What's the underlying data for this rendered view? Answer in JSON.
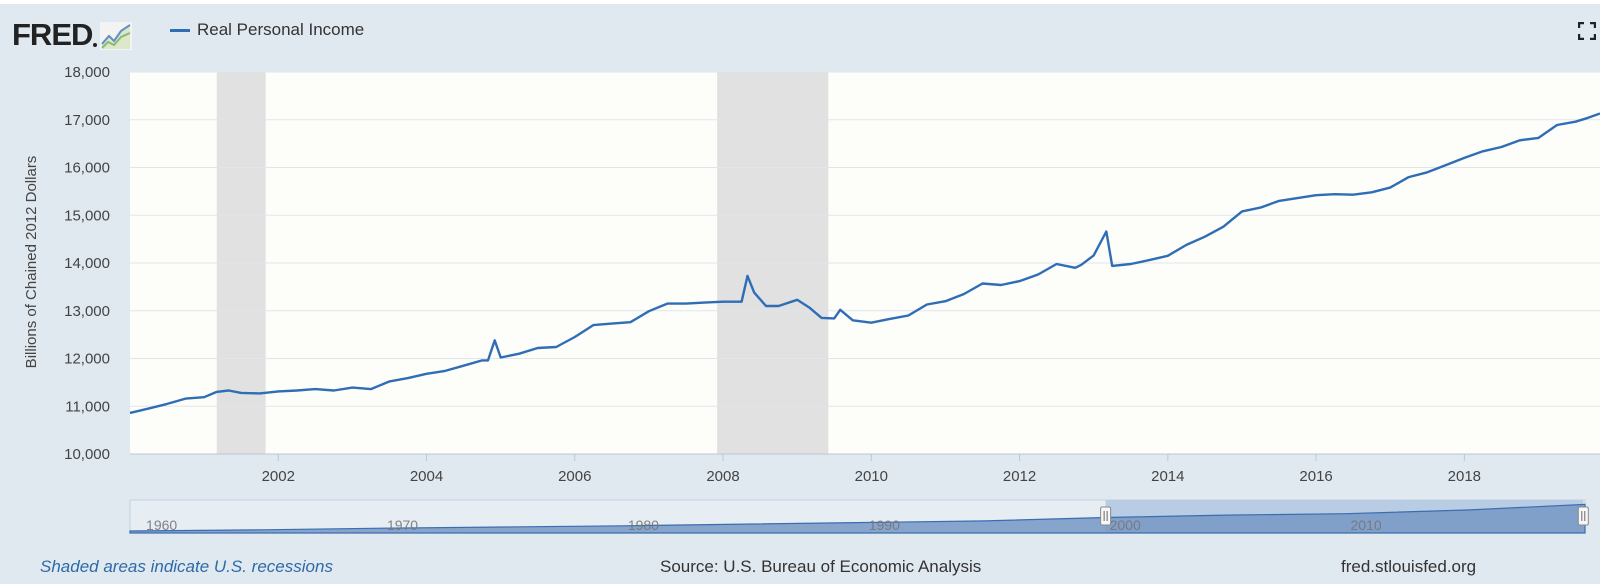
{
  "header": {
    "logo_text": "FRED",
    "legend_label": "Real Personal Income",
    "series_color": "#2f6db5"
  },
  "chart_data": {
    "type": "line",
    "title": "",
    "xlabel": "",
    "ylabel": "Billions of Chained 2012 Dollars",
    "xlim": [
      2000.0,
      2019.83
    ],
    "ylim": [
      10000,
      18000
    ],
    "y_ticks": [
      "10,000",
      "11,000",
      "12,000",
      "13,000",
      "14,000",
      "15,000",
      "16,000",
      "17,000",
      "18,000"
    ],
    "x_ticks": [
      "2002",
      "2004",
      "2006",
      "2008",
      "2010",
      "2012",
      "2014",
      "2016",
      "2018"
    ],
    "grid": true,
    "legend_position": "top-left",
    "recessions": [
      {
        "start": 2001.17,
        "end": 2001.83
      },
      {
        "start": 2007.92,
        "end": 2009.42
      }
    ],
    "series": [
      {
        "name": "Real Personal Income",
        "color": "#2f6db5",
        "points": [
          [
            2000.0,
            10860
          ],
          [
            2000.25,
            10950
          ],
          [
            2000.5,
            11050
          ],
          [
            2000.75,
            11160
          ],
          [
            2001.0,
            11190
          ],
          [
            2001.17,
            11300
          ],
          [
            2001.33,
            11330
          ],
          [
            2001.5,
            11280
          ],
          [
            2001.75,
            11270
          ],
          [
            2002.0,
            11310
          ],
          [
            2002.25,
            11330
          ],
          [
            2002.5,
            11360
          ],
          [
            2002.75,
            11330
          ],
          [
            2003.0,
            11390
          ],
          [
            2003.25,
            11360
          ],
          [
            2003.5,
            11520
          ],
          [
            2003.75,
            11590
          ],
          [
            2004.0,
            11680
          ],
          [
            2004.25,
            11740
          ],
          [
            2004.5,
            11850
          ],
          [
            2004.75,
            11960
          ],
          [
            2004.83,
            11960
          ],
          [
            2004.92,
            12380
          ],
          [
            2005.0,
            12020
          ],
          [
            2005.25,
            12100
          ],
          [
            2005.5,
            12220
          ],
          [
            2005.75,
            12240
          ],
          [
            2006.0,
            12450
          ],
          [
            2006.25,
            12700
          ],
          [
            2006.5,
            12730
          ],
          [
            2006.75,
            12760
          ],
          [
            2007.0,
            12990
          ],
          [
            2007.25,
            13150
          ],
          [
            2007.5,
            13150
          ],
          [
            2007.75,
            13170
          ],
          [
            2008.0,
            13190
          ],
          [
            2008.25,
            13190
          ],
          [
            2008.33,
            13730
          ],
          [
            2008.42,
            13380
          ],
          [
            2008.58,
            13100
          ],
          [
            2008.75,
            13100
          ],
          [
            2009.0,
            13230
          ],
          [
            2009.17,
            13060
          ],
          [
            2009.33,
            12850
          ],
          [
            2009.5,
            12840
          ],
          [
            2009.58,
            13020
          ],
          [
            2009.75,
            12800
          ],
          [
            2010.0,
            12750
          ],
          [
            2010.25,
            12830
          ],
          [
            2010.5,
            12900
          ],
          [
            2010.75,
            13130
          ],
          [
            2011.0,
            13200
          ],
          [
            2011.25,
            13350
          ],
          [
            2011.5,
            13570
          ],
          [
            2011.75,
            13540
          ],
          [
            2012.0,
            13620
          ],
          [
            2012.25,
            13760
          ],
          [
            2012.5,
            13980
          ],
          [
            2012.75,
            13900
          ],
          [
            2012.83,
            13960
          ],
          [
            2013.0,
            14160
          ],
          [
            2013.17,
            14660
          ],
          [
            2013.25,
            13940
          ],
          [
            2013.5,
            13980
          ],
          [
            2013.75,
            14060
          ],
          [
            2014.0,
            14150
          ],
          [
            2014.25,
            14380
          ],
          [
            2014.5,
            14550
          ],
          [
            2014.75,
            14760
          ],
          [
            2015.0,
            15080
          ],
          [
            2015.25,
            15160
          ],
          [
            2015.5,
            15300
          ],
          [
            2015.75,
            15360
          ],
          [
            2016.0,
            15420
          ],
          [
            2016.25,
            15440
          ],
          [
            2016.5,
            15430
          ],
          [
            2016.75,
            15480
          ],
          [
            2017.0,
            15580
          ],
          [
            2017.25,
            15800
          ],
          [
            2017.5,
            15900
          ],
          [
            2017.75,
            16050
          ],
          [
            2018.0,
            16200
          ],
          [
            2018.25,
            16340
          ],
          [
            2018.5,
            16430
          ],
          [
            2018.75,
            16570
          ],
          [
            2019.0,
            16620
          ],
          [
            2019.25,
            16890
          ],
          [
            2019.5,
            16960
          ],
          [
            2019.67,
            17040
          ],
          [
            2019.83,
            17130
          ]
        ]
      }
    ]
  },
  "navigator": {
    "labels": [
      "1960",
      "1970",
      "1980",
      "1990",
      "2000",
      "2010"
    ],
    "range_start": 2000.0,
    "range_end": 2019.83
  },
  "footer": {
    "recession_note": "Shaded areas indicate U.S. recessions",
    "source": "Source: U.S. Bureau of Economic Analysis",
    "url": "fred.stlouisfed.org"
  }
}
